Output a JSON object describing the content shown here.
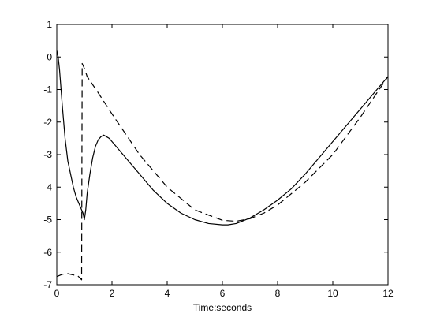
{
  "chart_data": {
    "type": "line",
    "title": "",
    "xlabel": "Time:seconds",
    "ylabel": "",
    "xlim": [
      0,
      12
    ],
    "ylim": [
      -7,
      1
    ],
    "xticks": [
      0,
      2,
      4,
      6,
      8,
      10,
      12
    ],
    "yticks": [
      1,
      0,
      -1,
      -2,
      -3,
      -4,
      -5,
      -6,
      -7
    ],
    "grid": false,
    "legend": "none",
    "series": [
      {
        "style": "solid",
        "color": "#000000",
        "x": [
          0,
          0.05,
          0.1,
          0.2,
          0.3,
          0.4,
          0.5,
          0.6,
          0.7,
          0.8,
          0.9,
          0.95,
          1.0,
          1.05,
          1.1,
          1.2,
          1.3,
          1.4,
          1.5,
          1.6,
          1.7,
          1.8,
          1.9,
          2.0,
          2.2,
          2.5,
          3.0,
          3.5,
          4.0,
          4.5,
          5.0,
          5.5,
          6.0,
          6.2,
          6.5,
          7.0,
          7.5,
          8.0,
          8.5,
          9.0,
          9.5,
          10.0,
          10.5,
          11.0,
          11.5,
          12.0
        ],
        "y": [
          0.2,
          0.0,
          -0.4,
          -1.5,
          -2.5,
          -3.2,
          -3.6,
          -4.0,
          -4.3,
          -4.5,
          -4.7,
          -4.8,
          -5.0,
          -4.7,
          -4.2,
          -3.6,
          -3.1,
          -2.75,
          -2.55,
          -2.45,
          -2.4,
          -2.45,
          -2.5,
          -2.6,
          -2.8,
          -3.1,
          -3.6,
          -4.1,
          -4.5,
          -4.8,
          -5.0,
          -5.12,
          -5.16,
          -5.16,
          -5.12,
          -4.95,
          -4.7,
          -4.4,
          -4.05,
          -3.6,
          -3.1,
          -2.6,
          -2.1,
          -1.6,
          -1.1,
          -0.6
        ]
      },
      {
        "style": "dashed",
        "color": "#000000",
        "x": [
          0,
          0.2,
          0.4,
          0.6,
          0.75,
          0.85,
          0.9,
          0.92,
          1.0,
          1.1,
          1.5,
          2.0,
          3.0,
          4.0,
          5.0,
          6.0,
          6.5,
          7.0,
          7.5,
          8.0,
          9.0,
          10.0,
          11.0,
          12.0
        ],
        "y": [
          -6.75,
          -6.68,
          -6.66,
          -6.7,
          -6.72,
          -6.8,
          -6.85,
          -0.2,
          -0.35,
          -0.6,
          -1.1,
          -1.75,
          -3.0,
          -4.0,
          -4.7,
          -5.02,
          -5.05,
          -4.97,
          -4.8,
          -4.55,
          -3.85,
          -3.0,
          -1.85,
          -0.6
        ]
      }
    ]
  }
}
